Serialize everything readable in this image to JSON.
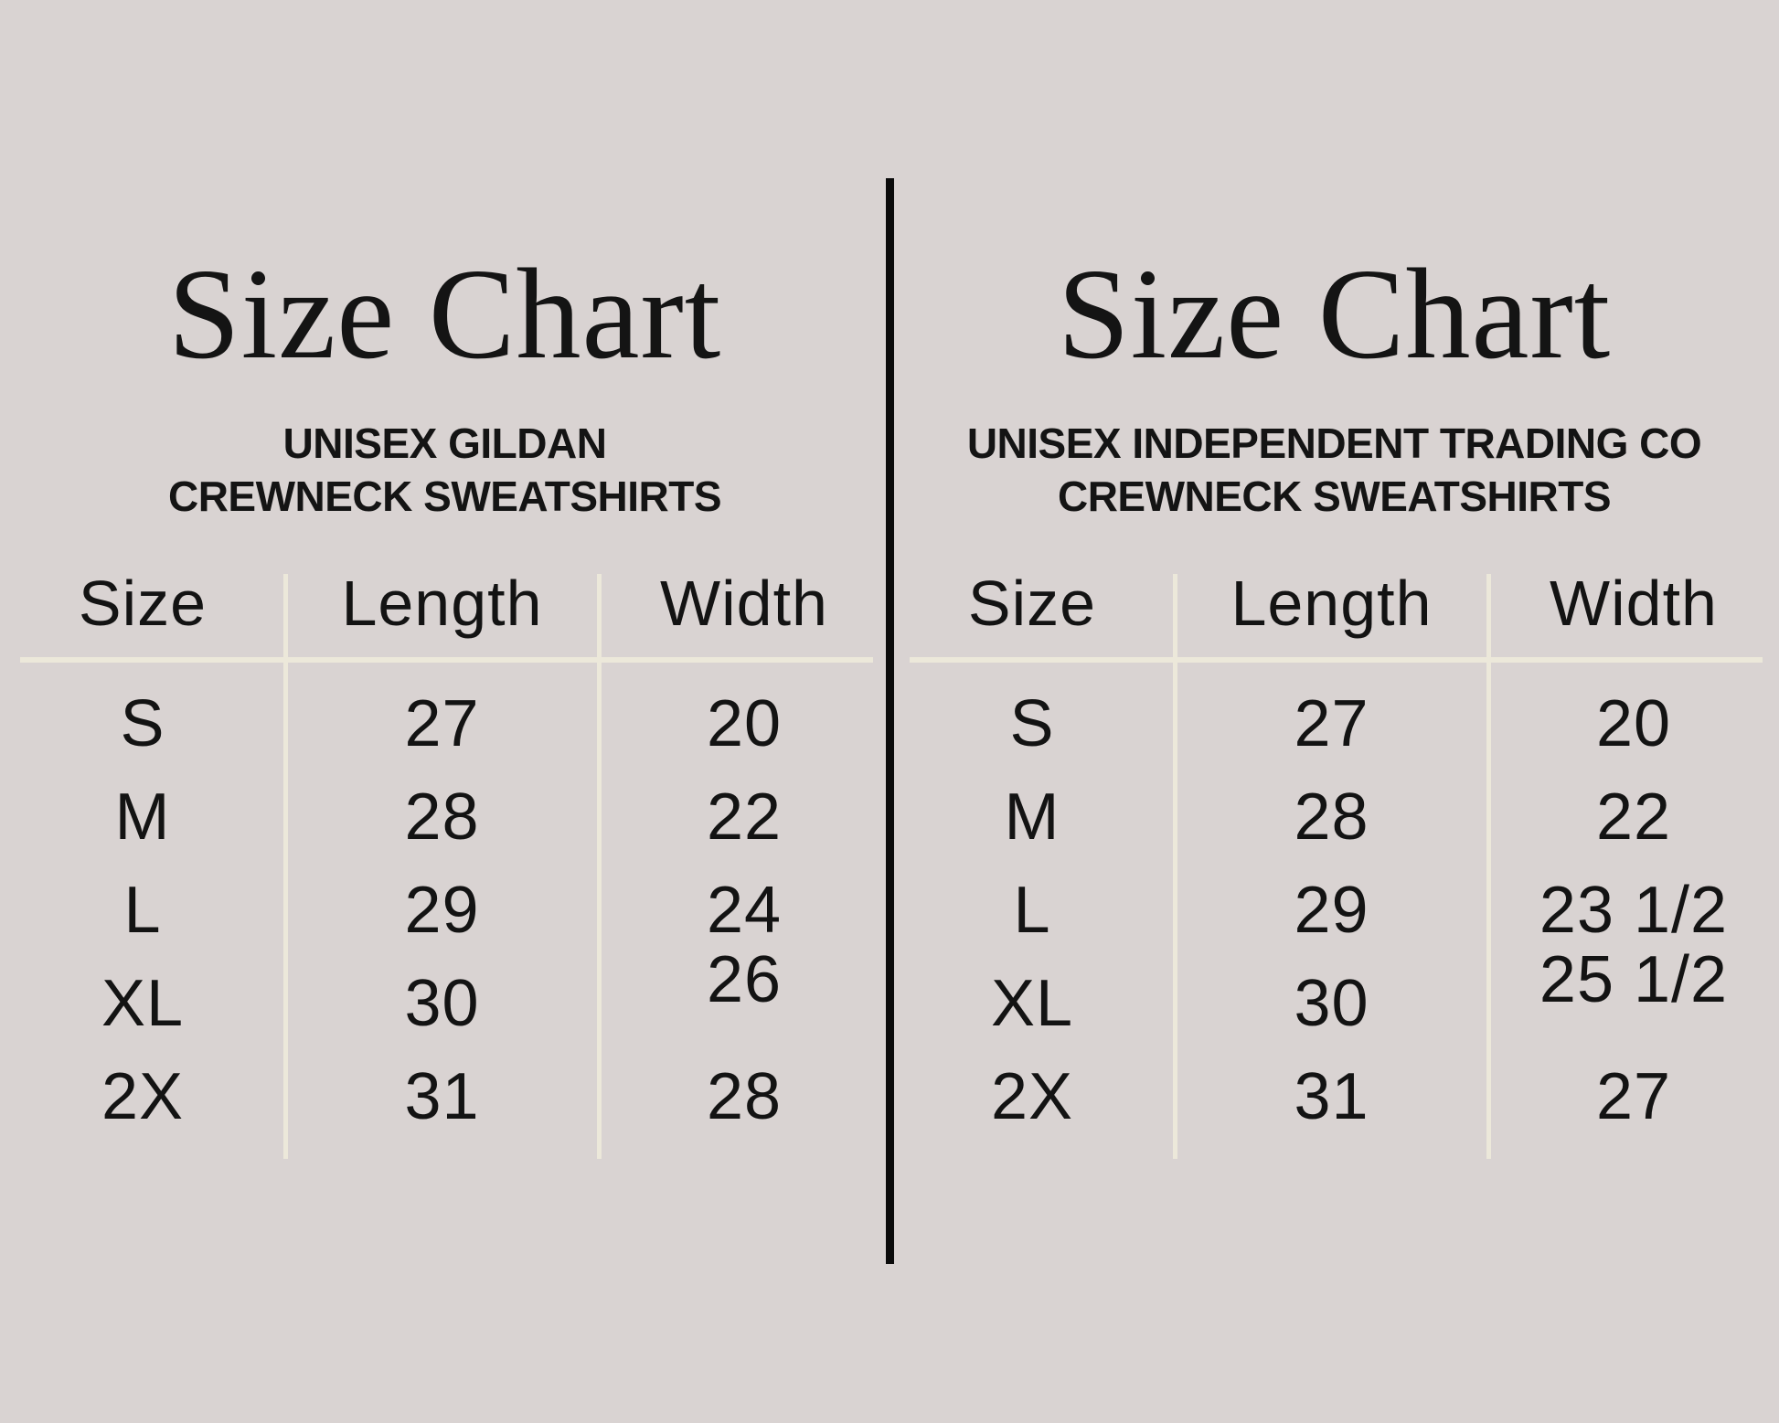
{
  "page": {
    "background_color": "#d9d3d2",
    "divider_color": "#0b0b0b",
    "grid_line_color": "#ece8da",
    "text_color": "#131313"
  },
  "charts": [
    {
      "title": "Size Chart",
      "subtitle": [
        "UNISEX GILDAN",
        "CREWNECK SWEATSHIRTS"
      ],
      "columns": [
        "Size",
        "Length",
        "Width"
      ],
      "rows": [
        [
          "S",
          "27",
          "20"
        ],
        [
          "M",
          "28",
          "22"
        ],
        [
          "L",
          "29",
          "24"
        ],
        [
          "XL",
          "30",
          "26"
        ],
        [
          "2X",
          "31",
          "28"
        ]
      ]
    },
    {
      "title": "Size Chart",
      "subtitle": [
        "UNISEX INDEPENDENT TRADING CO",
        "CREWNECK SWEATSHIRTS"
      ],
      "columns": [
        "Size",
        "Length",
        "Width"
      ],
      "rows": [
        [
          "S",
          "27",
          "20"
        ],
        [
          "M",
          "28",
          "22"
        ],
        [
          "L",
          "29",
          "23 1/2"
        ],
        [
          "XL",
          "30",
          "25 1/2"
        ],
        [
          "2X",
          "31",
          "27"
        ]
      ]
    }
  ],
  "chart_data": [
    {
      "type": "table",
      "title": "Size Chart",
      "subtitle": "UNISEX GILDAN CREWNECK SWEATSHIRTS",
      "columns": [
        "Size",
        "Length",
        "Width"
      ],
      "rows": [
        [
          "S",
          27,
          20
        ],
        [
          "M",
          28,
          22
        ],
        [
          "L",
          29,
          24
        ],
        [
          "XL",
          30,
          26
        ],
        [
          "2X",
          31,
          28
        ]
      ]
    },
    {
      "type": "table",
      "title": "Size Chart",
      "subtitle": "UNISEX INDEPENDENT TRADING CO CREWNECK SWEATSHIRTS",
      "columns": [
        "Size",
        "Length",
        "Width"
      ],
      "rows": [
        [
          "S",
          27,
          20
        ],
        [
          "M",
          28,
          22
        ],
        [
          "L",
          29,
          "23 1/2"
        ],
        [
          "XL",
          30,
          "25 1/2"
        ],
        [
          "2X",
          31,
          27
        ]
      ]
    }
  ]
}
